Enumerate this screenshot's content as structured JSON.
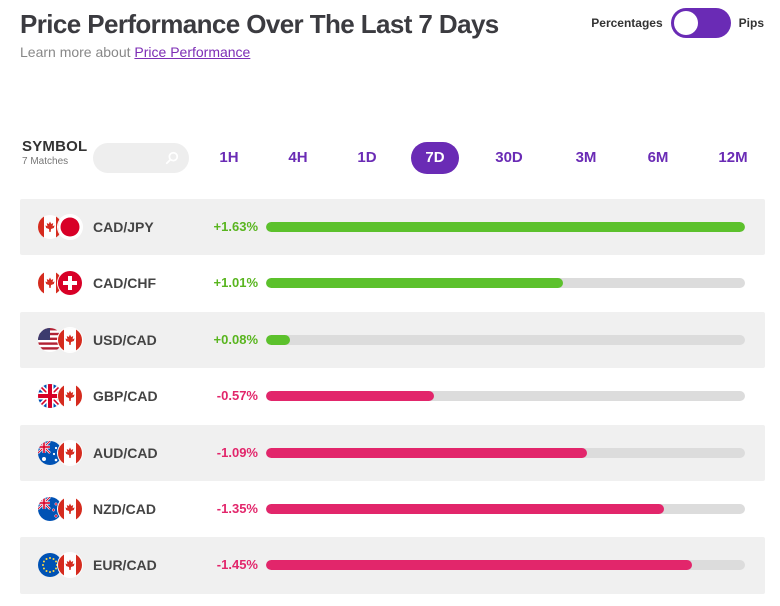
{
  "header": {
    "title": "Price Performance Over The Last 7 Days",
    "subtitle_prefix": "Learn more about ",
    "subtitle_link": "Price Performance"
  },
  "toggle": {
    "left_label": "Percentages",
    "right_label": "Pips",
    "state": "Percentages"
  },
  "symbol": {
    "label": "SYMBOL",
    "matches": "7 Matches"
  },
  "periods": [
    {
      "label": "1H",
      "active": false
    },
    {
      "label": "4H",
      "active": false
    },
    {
      "label": "1D",
      "active": false
    },
    {
      "label": "7D",
      "active": true
    },
    {
      "label": "30D",
      "active": false
    },
    {
      "label": "3M",
      "active": false
    },
    {
      "label": "6M",
      "active": false
    },
    {
      "label": "12M",
      "active": false
    }
  ],
  "rows": [
    {
      "pair": "CAD/JPY",
      "change": "+1.63%",
      "direction": "positive",
      "bar_fraction": 1.0,
      "flags": [
        "canada-flag-icon",
        "japan-flag-icon"
      ]
    },
    {
      "pair": "CAD/CHF",
      "change": "+1.01%",
      "direction": "positive",
      "bar_fraction": 0.62,
      "flags": [
        "canada-flag-icon",
        "switzerland-flag-icon"
      ]
    },
    {
      "pair": "USD/CAD",
      "change": "+0.08%",
      "direction": "positive",
      "bar_fraction": 0.05,
      "flags": [
        "usa-flag-icon",
        "canada-flag-icon"
      ]
    },
    {
      "pair": "GBP/CAD",
      "change": "-0.57%",
      "direction": "negative",
      "bar_fraction": 0.35,
      "flags": [
        "uk-flag-icon",
        "canada-flag-icon"
      ]
    },
    {
      "pair": "AUD/CAD",
      "change": "-1.09%",
      "direction": "negative",
      "bar_fraction": 0.67,
      "flags": [
        "australia-flag-icon",
        "canada-flag-icon"
      ]
    },
    {
      "pair": "NZD/CAD",
      "change": "-1.35%",
      "direction": "negative",
      "bar_fraction": 0.83,
      "flags": [
        "new-zealand-flag-icon",
        "canada-flag-icon"
      ]
    },
    {
      "pair": "EUR/CAD",
      "change": "-1.45%",
      "direction": "negative",
      "bar_fraction": 0.89,
      "flags": [
        "eu-flag-icon",
        "canada-flag-icon"
      ]
    }
  ],
  "colors": {
    "accent": "#6a2bb5",
    "positive": "#5cc12c",
    "negative": "#e2266b"
  }
}
